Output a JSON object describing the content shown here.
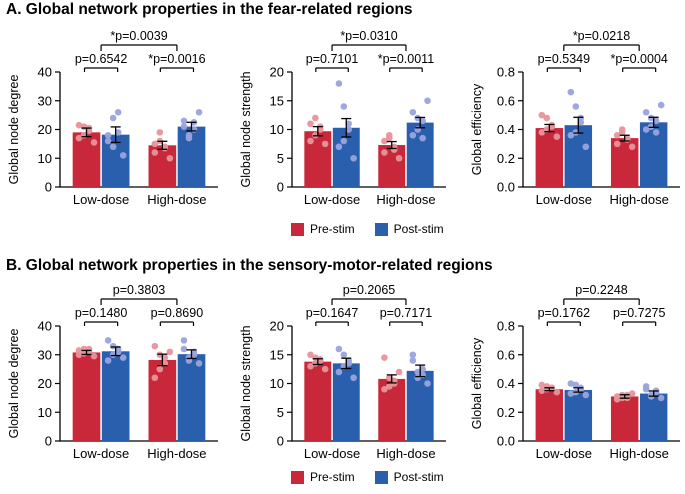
{
  "sections": [
    {
      "title": "A. Global network properties in the fear-related regions",
      "legend": [
        "Pre-stim",
        "Post-stim"
      ]
    },
    {
      "title": "B. Global network properties in the sensory-motor-related regions",
      "legend": [
        "Pre-stim",
        "Post-stim"
      ]
    }
  ],
  "colors": {
    "pre": "#c8283a",
    "post": "#2a5fae",
    "pre_dot": "#e7939b",
    "post_dot": "#9aa3dc"
  },
  "chart_data": [
    {
      "type": "bar",
      "ylabel": "Global node degree",
      "ylim": [
        0,
        40
      ],
      "yticks": [
        "0",
        "10",
        "20",
        "30",
        "40"
      ],
      "categories": [
        "Low-dose",
        "High-dose"
      ],
      "series": [
        {
          "name": "Pre-stim",
          "values": [
            19,
            14.5
          ],
          "sem": [
            1.5,
            1.4
          ]
        },
        {
          "name": "Post-stim",
          "values": [
            18.2,
            21
          ],
          "sem": [
            2.7,
            1.5
          ]
        }
      ],
      "points": [
        [
          [
            17,
            21,
            19.5,
            15.5,
            21.5,
            18,
            20.5
          ],
          [
            16,
            24,
            19,
            11,
            18,
            14,
            26
          ]
        ],
        [
          [
            12,
            16,
            13.5,
            10,
            15,
            19,
            14
          ],
          [
            23,
            18,
            20,
            26,
            21,
            17,
            22.5
          ]
        ]
      ],
      "within_p": [
        "p=0.6542",
        "*p=0.0016"
      ],
      "between_p": "*p=0.0039"
    },
    {
      "type": "bar",
      "ylabel": "Global node strength",
      "ylim": [
        0,
        20
      ],
      "yticks": [
        "0",
        "5",
        "10",
        "15",
        "20"
      ],
      "categories": [
        "Low-dose",
        "High-dose"
      ],
      "series": [
        {
          "name": "Pre-stim",
          "values": [
            9.7,
            7.3
          ],
          "sem": [
            0.8,
            0.6
          ]
        },
        {
          "name": "Post-stim",
          "values": [
            10.3,
            11.2
          ],
          "sem": [
            1.6,
            0.9
          ]
        }
      ],
      "points": [
        [
          [
            8,
            12,
            10,
            7.5,
            11,
            9,
            10.5
          ],
          [
            7,
            14,
            10,
            5,
            18,
            8,
            11
          ]
        ],
        [
          [
            6,
            8.5,
            7,
            5,
            8,
            9,
            6.5
          ],
          [
            13,
            10,
            11.5,
            15,
            9,
            12,
            8.5
          ]
        ]
      ],
      "within_p": [
        "p=0.7101",
        "*p=0.0011"
      ],
      "between_p": "*p=0.0310"
    },
    {
      "type": "bar",
      "ylabel": "Global efficiency",
      "ylim": [
        0,
        0.8
      ],
      "yticks": [
        "0.0",
        "0.2",
        "0.4",
        "0.6",
        "0.8"
      ],
      "categories": [
        "Low-dose",
        "High-dose"
      ],
      "series": [
        {
          "name": "Pre-stim",
          "values": [
            0.41,
            0.34
          ],
          "sem": [
            0.025,
            0.02
          ]
        },
        {
          "name": "Post-stim",
          "values": [
            0.43,
            0.45
          ],
          "sem": [
            0.055,
            0.035
          ]
        }
      ],
      "points": [
        [
          [
            0.38,
            0.48,
            0.42,
            0.35,
            0.5,
            0.4,
            0.43
          ],
          [
            0.36,
            0.56,
            0.45,
            0.28,
            0.66,
            0.38,
            0.48
          ]
        ],
        [
          [
            0.3,
            0.38,
            0.33,
            0.28,
            0.36,
            0.4,
            0.34
          ],
          [
            0.52,
            0.42,
            0.46,
            0.57,
            0.4,
            0.48,
            0.38
          ]
        ]
      ],
      "within_p": [
        "p=0.5349",
        "*p=0.0004"
      ],
      "between_p": "*p=0.0218"
    },
    {
      "type": "bar",
      "ylabel": "Global node degree",
      "ylim": [
        0,
        40
      ],
      "yticks": [
        "0",
        "10",
        "20",
        "30",
        "40"
      ],
      "categories": [
        "Low-dose",
        "High-dose"
      ],
      "series": [
        {
          "name": "Pre-stim",
          "values": [
            30.8,
            28.2
          ],
          "sem": [
            0.7,
            2
          ]
        },
        {
          "name": "Post-stim",
          "values": [
            31.2,
            30.2
          ],
          "sem": [
            1.5,
            1.5
          ]
        }
      ],
      "points": [
        [
          [
            30,
            32,
            31,
            29.5,
            31.5,
            30.5,
            32
          ],
          [
            28,
            33,
            32,
            29,
            35,
            30,
            31
          ]
        ],
        [
          [
            22,
            30,
            27,
            31,
            33,
            25,
            29
          ],
          [
            32,
            29,
            31,
            27,
            35,
            28,
            30
          ]
        ]
      ],
      "within_p": [
        "p=0.1480",
        "p=0.8690"
      ],
      "between_p": "p=0.3803"
    },
    {
      "type": "bar",
      "ylabel": "Global node strength",
      "ylim": [
        0,
        20
      ],
      "yticks": [
        "0",
        "5",
        "10",
        "15",
        "20"
      ],
      "categories": [
        "Low-dose",
        "High-dose"
      ],
      "series": [
        {
          "name": "Pre-stim",
          "values": [
            13.8,
            10.8
          ],
          "sem": [
            0.5,
            0.7
          ]
        },
        {
          "name": "Post-stim",
          "values": [
            13.5,
            12.2
          ],
          "sem": [
            0.9,
            1
          ]
        }
      ],
      "points": [
        [
          [
            13,
            14.5,
            14,
            12.5,
            15,
            13.5,
            14.2
          ],
          [
            12,
            15,
            14,
            11,
            16,
            13,
            13.5
          ]
        ],
        [
          [
            9,
            11,
            10.5,
            12,
            14.5,
            9.5,
            10
          ],
          [
            14,
            11,
            12.5,
            10,
            15,
            12,
            11.5
          ]
        ]
      ],
      "within_p": [
        "p=0.1647",
        "p=0.7171"
      ],
      "between_p": "p=0.2065"
    },
    {
      "type": "bar",
      "ylabel": "Global efficiency",
      "ylim": [
        0,
        0.8
      ],
      "yticks": [
        "0.0",
        "0.2",
        "0.4",
        "0.6",
        "0.8"
      ],
      "categories": [
        "Low-dose",
        "High-dose"
      ],
      "series": [
        {
          "name": "Pre-stim",
          "values": [
            0.36,
            0.31
          ],
          "sem": [
            0.01,
            0.012
          ]
        },
        {
          "name": "Post-stim",
          "values": [
            0.355,
            0.33
          ],
          "sem": [
            0.015,
            0.018
          ]
        }
      ],
      "points": [
        [
          [
            0.35,
            0.38,
            0.37,
            0.34,
            0.39,
            0.36,
            0.37
          ],
          [
            0.33,
            0.39,
            0.36,
            0.32,
            0.4,
            0.34,
            0.37
          ]
        ],
        [
          [
            0.29,
            0.32,
            0.3,
            0.33,
            0.31,
            0.3,
            0.32
          ],
          [
            0.36,
            0.31,
            0.34,
            0.3,
            0.38,
            0.32,
            0.35
          ]
        ]
      ],
      "within_p": [
        "p=0.1762",
        "p=0.7275"
      ],
      "between_p": "p=0.2248"
    }
  ]
}
